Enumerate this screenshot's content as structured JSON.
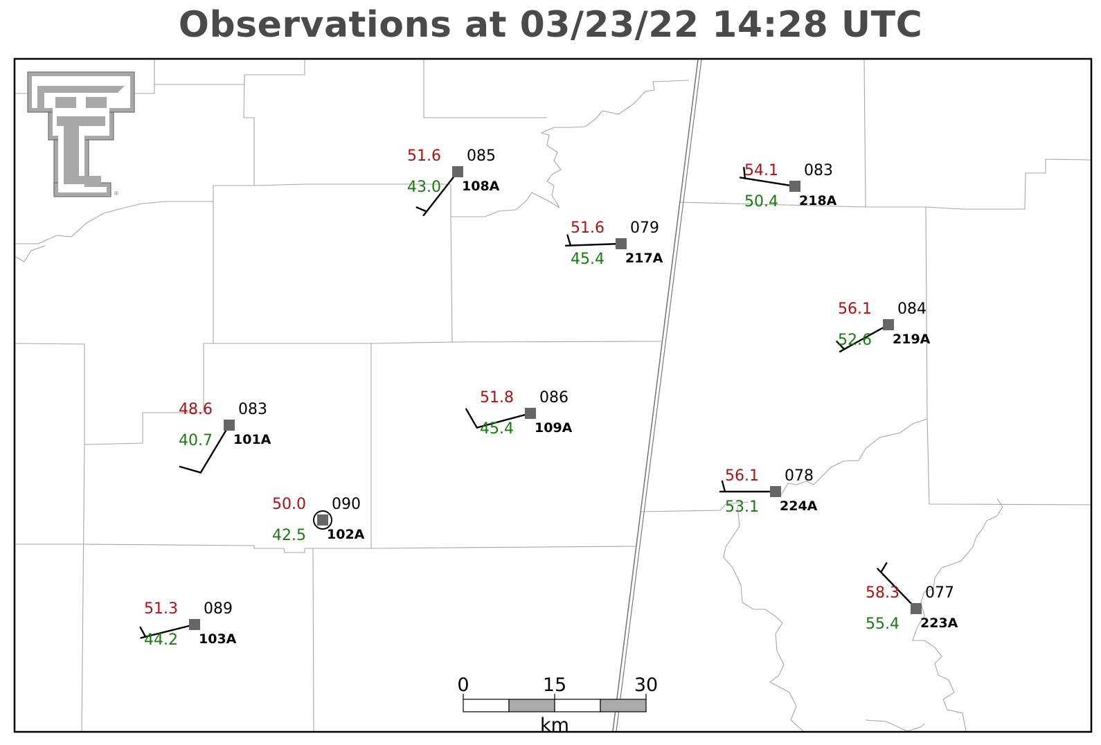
{
  "title": "Observations at 03/23/22 14:28 UTC",
  "colors": {
    "temperature": "#b00f0f",
    "dewpoint": "#1a7a12",
    "station_marker": "#666666",
    "boundary": "#a6a6a6",
    "title": "#4a4a4a"
  },
  "logo": {
    "icon": "texas-tech-double-t-logo"
  },
  "stations": [
    {
      "id": "108A",
      "temp": "51.6",
      "dewpoint": "43.0",
      "pressure": "085",
      "wind_dir_deg": 218,
      "wind_speed_kt": 5,
      "calm": false
    },
    {
      "id": "217A",
      "temp": "51.6",
      "dewpoint": "45.4",
      "pressure": "079",
      "wind_dir_deg": 268,
      "wind_speed_kt": 5,
      "calm": false
    },
    {
      "id": "218A",
      "temp": "54.1",
      "dewpoint": "50.4",
      "pressure": "083",
      "wind_dir_deg": 279,
      "wind_speed_kt": 5,
      "calm": false
    },
    {
      "id": "219A",
      "temp": "56.1",
      "dewpoint": "52.6",
      "pressure": "084",
      "wind_dir_deg": 241,
      "wind_speed_kt": 5,
      "calm": false
    },
    {
      "id": "101A",
      "temp": "48.6",
      "dewpoint": "40.7",
      "pressure": "083",
      "wind_dir_deg": 211,
      "wind_speed_kt": 10,
      "calm": false
    },
    {
      "id": "109A",
      "temp": "51.8",
      "dewpoint": "45.4",
      "pressure": "086",
      "wind_dir_deg": 255,
      "wind_speed_kt": 10,
      "calm": false
    },
    {
      "id": "102A",
      "temp": "50.0",
      "dewpoint": "42.5",
      "pressure": "090",
      "wind_dir_deg": 0,
      "wind_speed_kt": 0,
      "calm": true
    },
    {
      "id": "224A",
      "temp": "56.1",
      "dewpoint": "53.1",
      "pressure": "078",
      "wind_dir_deg": 270,
      "wind_speed_kt": 5,
      "calm": false
    },
    {
      "id": "103A",
      "temp": "51.3",
      "dewpoint": "44.2",
      "pressure": "089",
      "wind_dir_deg": 256,
      "wind_speed_kt": 5,
      "calm": false
    },
    {
      "id": "223A",
      "temp": "58.3",
      "dewpoint": "55.4",
      "pressure": "077",
      "wind_dir_deg": 316,
      "wind_speed_kt": 5,
      "calm": false
    }
  ],
  "scale_bar": {
    "ticks": [
      "0",
      "15",
      "30"
    ],
    "unit": "km"
  }
}
